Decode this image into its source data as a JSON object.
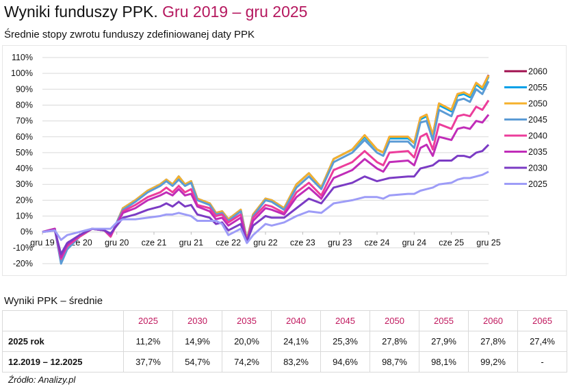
{
  "header": {
    "title": "Wyniki funduszy PPK.",
    "title_accent": "Gru 2019 – gru 2025",
    "subtitle": "Średnie stopy zwrotu funduszy zdefiniowanej daty PPK"
  },
  "chart_data": {
    "type": "line",
    "title": "",
    "xlabel": "",
    "ylabel": "",
    "ylim": [
      -20,
      110
    ],
    "yticks": [
      "110%",
      "100%",
      "90%",
      "80%",
      "70%",
      "60%",
      "50%",
      "40%",
      "30%",
      "20%",
      "10%",
      "0%",
      "-10%",
      "-20%"
    ],
    "ytick_values": [
      110,
      100,
      90,
      80,
      70,
      60,
      50,
      40,
      30,
      20,
      10,
      0,
      -10,
      -20
    ],
    "xticks": [
      "gru 19",
      "cze 20",
      "gru 20",
      "cze 21",
      "gru 21",
      "cze 22",
      "gru 22",
      "cze 23",
      "gru 23",
      "cze 24",
      "gru 24",
      "cze 25",
      "gru 25"
    ],
    "xtick_dates": [
      "2019-12",
      "2020-06",
      "2020-12",
      "2021-06",
      "2021-12",
      "2022-06",
      "2022-12",
      "2023-06",
      "2023-12",
      "2024-06",
      "2024-12",
      "2025-06",
      "2025-12"
    ],
    "grid": true,
    "legend": "right",
    "x": [
      "2019-12",
      "2020-02",
      "2020-03",
      "2020-04",
      "2020-06",
      "2020-08",
      "2020-10",
      "2020-11",
      "2020-12",
      "2021-01",
      "2021-03",
      "2021-05",
      "2021-07",
      "2021-08",
      "2021-09",
      "2021-10",
      "2021-11",
      "2021-12",
      "2022-01",
      "2022-03",
      "2022-04",
      "2022-05",
      "2022-06",
      "2022-08",
      "2022-09",
      "2022-10",
      "2022-12",
      "2023-01",
      "2023-03",
      "2023-05",
      "2023-07",
      "2023-09",
      "2023-11",
      "2024-02",
      "2024-04",
      "2024-06",
      "2024-07",
      "2024-08",
      "2024-11",
      "2024-12",
      "2025-01",
      "2025-02",
      "2025-03",
      "2025-04",
      "2025-06",
      "2025-07",
      "2025-08",
      "2025-09",
      "2025-10",
      "2025-11",
      "2025-12"
    ],
    "series": [
      {
        "name": "2060",
        "color": "#a0104f",
        "values": [
          0,
          2,
          -19,
          -10,
          -3,
          2,
          1,
          -3,
          6,
          15,
          20,
          26,
          30,
          33,
          30,
          35,
          30,
          32,
          21,
          18,
          12,
          13,
          8,
          14,
          -5,
          11,
          21,
          20,
          15,
          30,
          37,
          28,
          46,
          52,
          61,
          52,
          50,
          60,
          60,
          56,
          72,
          74,
          61,
          81,
          77,
          87,
          88,
          86,
          94,
          91,
          99
        ]
      },
      {
        "name": "2055",
        "color": "#00a0e8",
        "values": [
          0,
          2,
          -19,
          -10,
          -3,
          2,
          1,
          -3,
          6,
          15,
          20,
          26,
          30,
          33,
          30,
          35,
          30,
          32,
          21,
          18,
          12,
          13,
          8,
          14,
          -5,
          11,
          21,
          20,
          15,
          30,
          37,
          28,
          46,
          52,
          60,
          52,
          50,
          59,
          59,
          56,
          71,
          73,
          60,
          80,
          76,
          86,
          87,
          85,
          93,
          90,
          98
        ]
      },
      {
        "name": "2050",
        "color": "#f5b12c",
        "values": [
          0,
          2,
          -19,
          -10,
          -3,
          2,
          1,
          -3,
          6,
          15,
          20,
          26,
          30,
          33,
          30,
          35,
          30,
          32,
          21,
          18,
          12,
          13,
          8,
          14,
          -5,
          11,
          21,
          20,
          15,
          30,
          37,
          28,
          46,
          52,
          61,
          52,
          50,
          60,
          60,
          56,
          72,
          74,
          61,
          81,
          77,
          87,
          88,
          86,
          94,
          91,
          98.7
        ]
      },
      {
        "name": "2045",
        "color": "#5b9bd5",
        "values": [
          0,
          2,
          -20,
          -11,
          -3,
          2,
          1,
          -3,
          6,
          14,
          19,
          25,
          29,
          32,
          29,
          33,
          29,
          31,
          20,
          17,
          11,
          12,
          7,
          13,
          -6,
          10,
          20,
          19,
          14,
          28,
          35,
          27,
          44,
          50,
          58,
          50,
          48,
          57,
          57,
          53,
          69,
          70,
          58,
          77,
          73,
          83,
          84,
          82,
          90,
          87,
          95
        ]
      },
      {
        "name": "2040",
        "color": "#ec3d9b",
        "values": [
          0,
          2,
          -17,
          -9,
          -3,
          2,
          1,
          -3,
          5,
          13,
          17,
          22,
          25,
          28,
          25,
          29,
          25,
          27,
          17,
          15,
          10,
          11,
          6,
          11,
          -6,
          9,
          17,
          16,
          12,
          25,
          31,
          23,
          39,
          44,
          51,
          44,
          42,
          50,
          51,
          47,
          60,
          62,
          52,
          68,
          65,
          73,
          74,
          73,
          79,
          77,
          83
        ]
      },
      {
        "name": "2035",
        "color": "#c02cb8",
        "values": [
          0,
          2,
          -16,
          -8,
          -2,
          2,
          1,
          -2,
          5,
          12,
          15,
          20,
          23,
          25,
          23,
          27,
          23,
          24,
          16,
          13,
          8,
          9,
          4,
          9,
          -6,
          7,
          15,
          14,
          11,
          22,
          28,
          21,
          34,
          39,
          46,
          40,
          38,
          44,
          45,
          42,
          53,
          55,
          48,
          60,
          58,
          65,
          66,
          65,
          70,
          69,
          74
        ]
      },
      {
        "name": "2030",
        "color": "#7b3bc4",
        "values": [
          0,
          1,
          -14,
          -7,
          -2,
          2,
          1,
          -1,
          4,
          9,
          11,
          14,
          16,
          18,
          16,
          19,
          16,
          17,
          11,
          9,
          5,
          6,
          1,
          5,
          -6,
          4,
          10,
          9,
          9,
          15,
          21,
          18,
          28,
          31,
          35,
          32,
          33,
          34,
          35,
          35,
          40,
          41,
          42,
          45,
          45,
          48,
          48,
          47,
          50,
          51,
          55
        ]
      },
      {
        "name": "2025",
        "color": "#9d9cf7",
        "values": [
          0,
          1,
          -5,
          -2,
          0,
          2,
          2,
          2,
          6,
          8,
          8,
          9,
          10,
          11,
          11,
          12,
          11,
          10,
          7,
          7,
          7,
          5,
          -2,
          2,
          -7,
          -2,
          5,
          4,
          6,
          10,
          13,
          12,
          18,
          20,
          22,
          22,
          21,
          23,
          24,
          24,
          26,
          27,
          28,
          30,
          31,
          33,
          34,
          34,
          35,
          36,
          38
        ]
      }
    ]
  },
  "table": {
    "title": "Wyniki PPK – średnie",
    "columns": [
      "2025",
      "2030",
      "2035",
      "2040",
      "2045",
      "2050",
      "2055",
      "2060",
      "2065"
    ],
    "rows": [
      {
        "label": "2025 rok",
        "values": [
          "11,2%",
          "14,9%",
          "20,0%",
          "24,1%",
          "25,3%",
          "27,8%",
          "27,9%",
          "27,8%",
          "27,4%"
        ]
      },
      {
        "label": "12.2019 – 12.2025",
        "values": [
          "37,7%",
          "54,7%",
          "74,2%",
          "83,2%",
          "94,6%",
          "98,7%",
          "98,1%",
          "99,2%",
          "-"
        ]
      }
    ],
    "header_color": "#c0175d"
  },
  "source": "Źródło: Analizy.pl"
}
